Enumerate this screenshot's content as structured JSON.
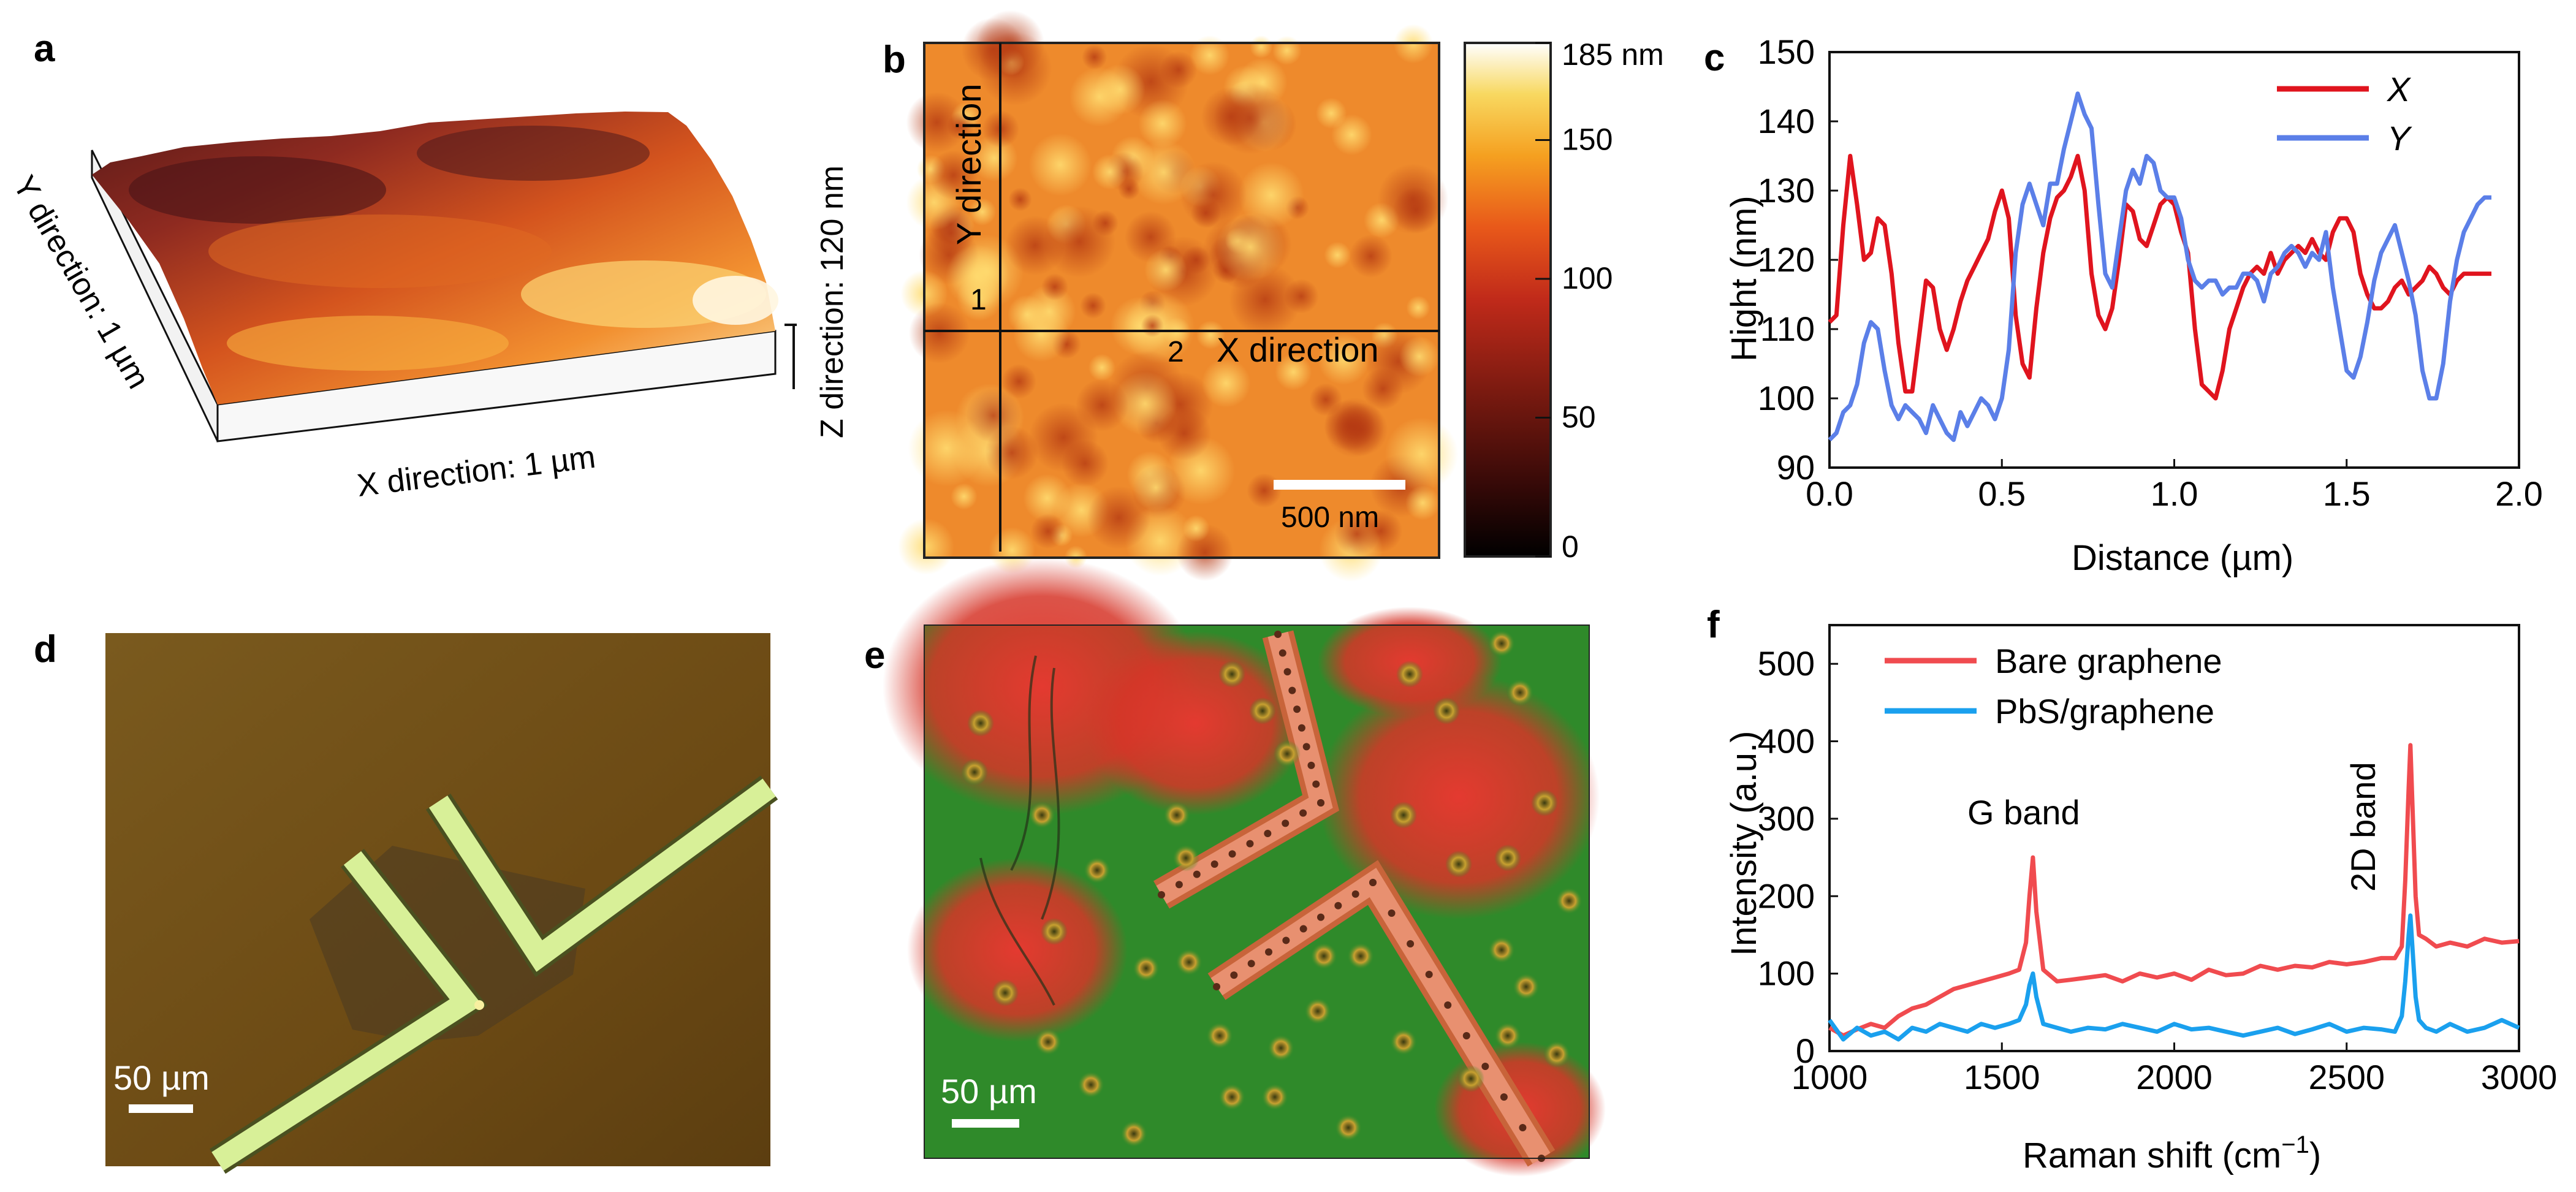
{
  "panel_letters": {
    "a": "a",
    "b": "b",
    "c": "c",
    "d": "d",
    "e": "e",
    "f": "f"
  },
  "panel_a": {
    "y_label": "Y direction: 1 µm",
    "x_label": "X direction: 1 µm",
    "z_label": "Z direction: 120 nm"
  },
  "panel_b": {
    "y_dir": "Y direction",
    "x_dir": "X direction",
    "line1": "1",
    "line2": "2",
    "scale_bar": "500 nm",
    "colorbar_ticks": [
      "185 nm",
      "150",
      "100",
      "50",
      "0"
    ],
    "colorbar_values": [
      185,
      150,
      100,
      50,
      0
    ],
    "colorbar_range": [
      0,
      185
    ],
    "colorbar_scale": [
      "#000000",
      "#3a0a08",
      "#7a1a10",
      "#c02a1a",
      "#e8581a",
      "#f5a020",
      "#f8d860",
      "#ffffff"
    ]
  },
  "panel_d": {
    "scale_bar": "50 µm"
  },
  "panel_e": {
    "scale_bar": "50 µm"
  },
  "colors": {
    "red": "#e0141e",
    "blue": "#5b7fe8",
    "f_red": "#f04b4f",
    "f_blue": "#1aa0ee"
  },
  "chart_data": [
    {
      "type": "line",
      "panel": "c",
      "xlabel": "Distance (µm)",
      "ylabel": "Hight (nm)",
      "xlim": [
        0,
        2.0
      ],
      "ylim": [
        90,
        150
      ],
      "xticks": [
        "0.0",
        "0.5",
        "1.0",
        "1.5",
        "2.0"
      ],
      "yticks": [
        "90",
        "100",
        "110",
        "120",
        "130",
        "140",
        "150"
      ],
      "legend_position": "top-right",
      "series": [
        {
          "name": "X",
          "color": "#e0141e",
          "x": [
            0.0,
            0.02,
            0.04,
            0.06,
            0.08,
            0.1,
            0.12,
            0.14,
            0.16,
            0.18,
            0.2,
            0.22,
            0.24,
            0.26,
            0.28,
            0.3,
            0.32,
            0.34,
            0.36,
            0.38,
            0.4,
            0.42,
            0.44,
            0.46,
            0.48,
            0.5,
            0.52,
            0.54,
            0.56,
            0.58,
            0.6,
            0.62,
            0.64,
            0.66,
            0.68,
            0.7,
            0.72,
            0.74,
            0.76,
            0.78,
            0.8,
            0.82,
            0.84,
            0.86,
            0.88,
            0.9,
            0.92,
            0.94,
            0.96,
            0.98,
            1.0,
            1.02,
            1.04,
            1.06,
            1.08,
            1.1,
            1.12,
            1.14,
            1.16,
            1.18,
            1.2,
            1.22,
            1.24,
            1.26,
            1.28,
            1.3,
            1.32,
            1.34,
            1.36,
            1.38,
            1.4,
            1.42,
            1.44,
            1.46,
            1.48,
            1.5,
            1.52,
            1.54,
            1.56,
            1.58,
            1.6,
            1.62,
            1.64,
            1.66,
            1.68,
            1.7,
            1.72,
            1.74,
            1.76,
            1.78,
            1.8,
            1.82,
            1.84,
            1.86,
            1.88,
            1.9,
            1.92
          ],
          "values": [
            111,
            112,
            125,
            135,
            128,
            120,
            121,
            126,
            125,
            118,
            108,
            101,
            101,
            109,
            117,
            116,
            110,
            107,
            110,
            114,
            117,
            119,
            121,
            123,
            127,
            130,
            126,
            112,
            105,
            103,
            113,
            121,
            126,
            129,
            130,
            132,
            135,
            130,
            118,
            112,
            110,
            113,
            120,
            128,
            127,
            123,
            122,
            125,
            128,
            129,
            128,
            124,
            121,
            110,
            102,
            101,
            100,
            104,
            110,
            113,
            116,
            118,
            119,
            118,
            121,
            118,
            120,
            121,
            122,
            121,
            123,
            121,
            120,
            124,
            126,
            126,
            124,
            118,
            115,
            113,
            113,
            114,
            116,
            117,
            115,
            116,
            117,
            119,
            118,
            116,
            115,
            117,
            118,
            118,
            118,
            118,
            118
          ]
        },
        {
          "name": "Y",
          "color": "#5b7fe8",
          "x": [
            0.0,
            0.02,
            0.04,
            0.06,
            0.08,
            0.1,
            0.12,
            0.14,
            0.16,
            0.18,
            0.2,
            0.22,
            0.24,
            0.26,
            0.28,
            0.3,
            0.32,
            0.34,
            0.36,
            0.38,
            0.4,
            0.42,
            0.44,
            0.46,
            0.48,
            0.5,
            0.52,
            0.54,
            0.56,
            0.58,
            0.6,
            0.62,
            0.64,
            0.66,
            0.68,
            0.7,
            0.72,
            0.74,
            0.76,
            0.78,
            0.8,
            0.82,
            0.84,
            0.86,
            0.88,
            0.9,
            0.92,
            0.94,
            0.96,
            0.98,
            1.0,
            1.02,
            1.04,
            1.06,
            1.08,
            1.1,
            1.12,
            1.14,
            1.16,
            1.18,
            1.2,
            1.22,
            1.24,
            1.26,
            1.28,
            1.3,
            1.32,
            1.34,
            1.36,
            1.38,
            1.4,
            1.42,
            1.44,
            1.46,
            1.48,
            1.5,
            1.52,
            1.54,
            1.56,
            1.58,
            1.6,
            1.62,
            1.64,
            1.66,
            1.68,
            1.7,
            1.72,
            1.74,
            1.76,
            1.78,
            1.8,
            1.82,
            1.84,
            1.86,
            1.88,
            1.9,
            1.92
          ],
          "values": [
            94,
            95,
            98,
            99,
            102,
            108,
            111,
            110,
            104,
            99,
            97,
            99,
            98,
            97,
            95,
            99,
            97,
            95,
            94,
            98,
            96,
            98,
            100,
            99,
            97,
            100,
            107,
            121,
            128,
            131,
            128,
            125,
            131,
            131,
            136,
            140,
            144,
            141,
            139,
            128,
            118,
            116,
            123,
            130,
            133,
            131,
            135,
            134,
            130,
            129,
            129,
            126,
            120,
            117,
            116,
            117,
            117,
            115,
            116,
            116,
            118,
            118,
            117,
            114,
            118,
            119,
            121,
            122,
            121,
            119,
            121,
            120,
            124,
            116,
            110,
            104,
            103,
            106,
            111,
            117,
            121,
            123,
            125,
            121,
            117,
            112,
            104,
            100,
            100,
            105,
            114,
            120,
            124,
            126,
            128,
            129,
            129
          ]
        }
      ]
    },
    {
      "type": "line",
      "panel": "f",
      "xlabel": "Raman shift (cm",
      "xlabel_sup": "−1",
      "xlabel_tail": ")",
      "ylabel": "Intensity (a.u.)",
      "xlim": [
        1000,
        3000
      ],
      "ylim": [
        0,
        550
      ],
      "xticks": [
        "1000",
        "1500",
        "2000",
        "2500",
        "3000"
      ],
      "yticks": [
        "0",
        "100",
        "200",
        "300",
        "400",
        "500"
      ],
      "legend_position": "top-left",
      "annotations": [
        "G band",
        "2D band"
      ],
      "series": [
        {
          "name": "Bare graphene",
          "color": "#f04b4f",
          "x": [
            1000,
            1040,
            1080,
            1120,
            1160,
            1200,
            1240,
            1280,
            1320,
            1360,
            1400,
            1440,
            1480,
            1520,
            1550,
            1570,
            1580,
            1590,
            1600,
            1620,
            1660,
            1700,
            1750,
            1800,
            1850,
            1900,
            1950,
            2000,
            2050,
            2100,
            2150,
            2200,
            2250,
            2300,
            2350,
            2400,
            2450,
            2500,
            2550,
            2600,
            2640,
            2660,
            2670,
            2680,
            2685,
            2690,
            2700,
            2710,
            2730,
            2760,
            2800,
            2850,
            2900,
            2950,
            3000
          ],
          "values": [
            30,
            20,
            28,
            35,
            30,
            45,
            55,
            60,
            70,
            80,
            85,
            90,
            95,
            100,
            105,
            140,
            200,
            250,
            180,
            105,
            90,
            92,
            95,
            98,
            90,
            100,
            95,
            100,
            92,
            105,
            98,
            100,
            110,
            105,
            110,
            108,
            115,
            112,
            115,
            120,
            120,
            135,
            220,
            340,
            395,
            330,
            200,
            150,
            145,
            135,
            140,
            135,
            145,
            140,
            142
          ]
        },
        {
          "name": "PbS/graphene",
          "color": "#1aa0ee",
          "x": [
            1000,
            1040,
            1080,
            1120,
            1160,
            1200,
            1240,
            1280,
            1320,
            1360,
            1400,
            1440,
            1480,
            1520,
            1550,
            1570,
            1580,
            1590,
            1600,
            1620,
            1660,
            1700,
            1750,
            1800,
            1850,
            1900,
            1950,
            2000,
            2050,
            2100,
            2150,
            2200,
            2250,
            2300,
            2350,
            2400,
            2450,
            2500,
            2550,
            2600,
            2640,
            2660,
            2670,
            2680,
            2685,
            2690,
            2700,
            2710,
            2730,
            2760,
            2800,
            2850,
            2900,
            2950,
            3000
          ],
          "values": [
            40,
            15,
            30,
            20,
            25,
            15,
            30,
            25,
            35,
            30,
            25,
            35,
            30,
            35,
            40,
            60,
            85,
            100,
            70,
            35,
            30,
            25,
            30,
            28,
            35,
            30,
            25,
            35,
            28,
            30,
            25,
            20,
            25,
            30,
            22,
            28,
            35,
            25,
            30,
            28,
            25,
            45,
            90,
            150,
            175,
            140,
            70,
            40,
            30,
            25,
            35,
            25,
            30,
            40,
            30
          ]
        }
      ]
    }
  ]
}
